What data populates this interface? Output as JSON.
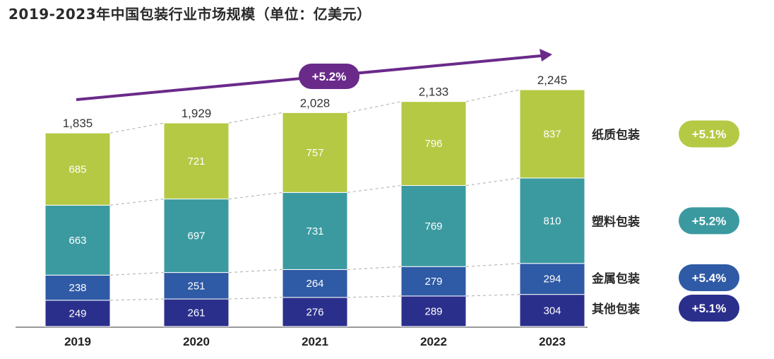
{
  "chart_data": {
    "type": "bar",
    "stacked": true,
    "title": "2019-2023年中国包装行业市场规模（单位：亿美元）",
    "categories": [
      "2019",
      "2020",
      "2021",
      "2022",
      "2023"
    ],
    "series": [
      {
        "name": "其他包装",
        "values": [
          249,
          261,
          276,
          289,
          304
        ],
        "color": "#2b2f8c",
        "cagr": "+5.1%"
      },
      {
        "name": "金属包装",
        "values": [
          238,
          251,
          264,
          279,
          294
        ],
        "color": "#2f5aa5",
        "cagr": "+5.4%"
      },
      {
        "name": "塑料包装",
        "values": [
          663,
          697,
          731,
          769,
          810
        ],
        "color": "#3b9aa0",
        "cagr": "+5.2%"
      },
      {
        "name": "纸质包装",
        "values": [
          685,
          721,
          757,
          796,
          837
        ],
        "color": "#b5c944",
        "cagr": "+5.1%"
      }
    ],
    "totals": [
      1835,
      1929,
      2028,
      2133,
      2245
    ],
    "total_labels": [
      "1,835",
      "1,929",
      "2,028",
      "2,133",
      "2,245"
    ],
    "overall_cagr": "+5.2%",
    "overall_cagr_color": "#6a2a8a",
    "ylim": [
      0,
      2245
    ],
    "grid": false,
    "legend_position": "right"
  }
}
